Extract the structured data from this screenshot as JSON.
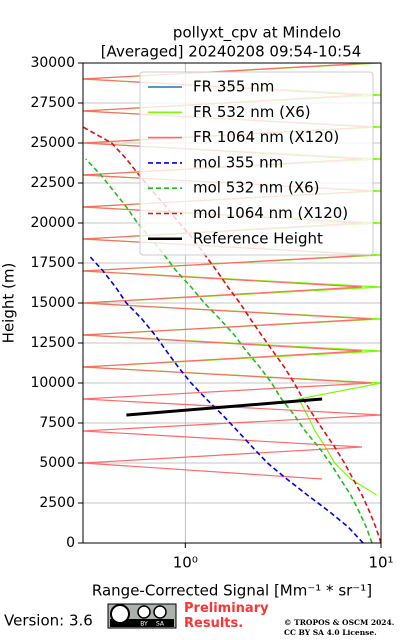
{
  "chart_data": {
    "type": "line",
    "title": "pollyxt_cpv at Mindelo",
    "subtitle": "[Averaged] 20240208 09:54-10:54",
    "x_label": "Range-Corrected Signal [Mm⁻¹ * sr⁻¹]",
    "y_label": "Height (m)",
    "xscale": "log",
    "xlim": [
      0.3,
      10
    ],
    "xticks": [
      {
        "value": 1,
        "label": "10⁰"
      },
      {
        "value": 10,
        "label": "10¹"
      }
    ],
    "ylim": [
      0,
      30000
    ],
    "yticks": [
      0,
      2500,
      5000,
      7500,
      10000,
      12500,
      15000,
      17500,
      20000,
      22500,
      25000,
      27500,
      30000
    ],
    "grid": true,
    "legend": "upper right",
    "y": [
      0,
      1000,
      2000,
      3000,
      4000,
      5000,
      6000,
      7000,
      8000,
      9000,
      10000,
      11000,
      12000,
      13000,
      14000,
      15000,
      16000,
      17000,
      18000,
      19000,
      20000,
      21000,
      22000,
      23000,
      24000,
      25000,
      26000,
      27000,
      28000,
      29000,
      30000
    ],
    "series": [
      {
        "name": "FR 355 nm",
        "color": "#1f77b4",
        "style": "solid",
        "values": [
          null,
          null,
          null,
          null,
          null,
          null,
          null,
          null,
          null,
          null,
          null,
          null,
          null,
          null,
          null,
          null,
          null,
          null,
          null,
          null,
          null,
          null,
          null,
          null,
          null,
          null,
          null,
          null,
          null,
          null,
          null
        ]
      },
      {
        "name": "FR 532 nm (X6)",
        "color": "#7cfc00",
        "style": "solid",
        "values": [
          null,
          null,
          null,
          9.5,
          7.0,
          5.8,
          5.2,
          4.6,
          4.2,
          3.8,
          10,
          0.3,
          10,
          0.3,
          10,
          0.3,
          10,
          0.3,
          10,
          0.3,
          10,
          0.3,
          10,
          0.3,
          10,
          0.3,
          10,
          0.3,
          10,
          0.3,
          10
        ]
      },
      {
        "name": "FR 1064 nm (X120)",
        "color": "#ff6a6a",
        "style": "solid",
        "values": [
          null,
          null,
          null,
          null,
          5,
          0.3,
          8,
          0.3,
          10,
          0.3,
          9,
          0.3,
          8,
          0.3,
          9,
          0.3,
          8,
          0.3,
          9,
          0.3,
          8,
          0.3,
          9,
          0.3,
          8,
          0.3,
          9,
          0.3,
          8,
          0.3,
          9
        ]
      },
      {
        "name": "mol 355 nm",
        "color": "#0000ee",
        "style": "dashed",
        "values": [
          8.1,
          6.8,
          5.4,
          4.2,
          3.3,
          2.63,
          2.2,
          1.85,
          1.55,
          1.28,
          1.07,
          0.92,
          0.8,
          0.7,
          0.6,
          0.5,
          0.44,
          0.38,
          0.32,
          null,
          null,
          null,
          null,
          null,
          null,
          null,
          null,
          null,
          null,
          null,
          null
        ]
      },
      {
        "name": "mol 532 nm (X6)",
        "color": "#22bb22",
        "style": "dashed",
        "values": [
          9.0,
          8.4,
          7.7,
          7.0,
          6.2,
          5.5,
          4.8,
          4.1,
          3.6,
          3.1,
          2.76,
          2.4,
          2.05,
          1.78,
          1.5,
          1.25,
          1.07,
          0.9,
          0.78,
          0.67,
          0.57,
          0.5,
          0.43,
          0.37,
          0.31,
          null,
          null,
          null,
          null,
          null,
          null
        ]
      },
      {
        "name": "mol 1064 nm (X120)",
        "color": "#dd1111",
        "style": "dashed",
        "values": [
          10,
          9.4,
          8.7,
          8.0,
          7.2,
          6.5,
          5.8,
          5.1,
          4.5,
          4.0,
          3.6,
          3.2,
          2.8,
          2.45,
          2.15,
          1.9,
          1.65,
          1.45,
          1.26,
          1.1,
          0.93,
          0.8,
          0.68,
          0.58,
          0.5,
          0.42,
          0.3,
          null,
          null,
          null,
          null
        ]
      },
      {
        "name": "Reference Height",
        "color": "#000000",
        "style": "thick",
        "values": [
          null,
          null,
          null,
          null,
          null,
          null,
          null,
          null,
          0.5,
          5,
          null,
          null,
          null,
          null,
          null,
          null,
          null,
          null,
          null,
          null,
          null,
          null,
          null,
          null,
          null,
          null,
          null,
          null,
          null,
          null,
          null
        ]
      }
    ]
  },
  "footer": {
    "version": "Version: 3.6",
    "badge_by": "BY",
    "badge_sa": "SA",
    "note": "Preliminary Results.",
    "copyright": "© TROPOS & OSCM 2024.",
    "license": "CC BY SA 4.0 License."
  }
}
